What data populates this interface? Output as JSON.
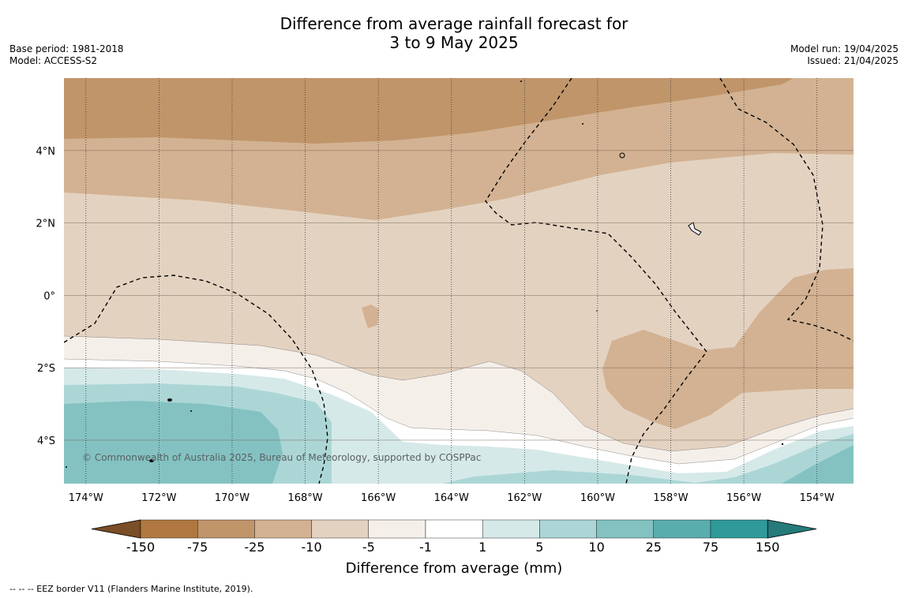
{
  "header": {
    "title_line1": "Difference from average rainfall forecast for",
    "title_line2": "3 to 9 May 2025",
    "base_period": "Base period: 1981-2018",
    "model": "Model: ACCESS-S2",
    "model_run": "Model run: 19/04/2025",
    "issued": "Issued: 21/04/2025"
  },
  "map": {
    "copyright": "© Commonwealth of Australia 2025, Bureau of Meteorology, supported by COSPPac",
    "lat_labels": [
      "4°N",
      "2°N",
      "0°",
      "2°S",
      "4°S"
    ],
    "lon_labels": [
      "174°W",
      "172°W",
      "170°W",
      "168°W",
      "166°W",
      "164°W",
      "162°W",
      "160°W",
      "158°W",
      "156°W",
      "154°W"
    ],
    "lat_range": [
      -5.2,
      6.0
    ],
    "lon_range": [
      -174.6,
      -153.0
    ],
    "lat_ticks": [
      4,
      2,
      0,
      -2,
      -4
    ],
    "lon_ticks": [
      -174,
      -172,
      -170,
      -168,
      -166,
      -164,
      -162,
      -160,
      -158,
      -156,
      -154
    ]
  },
  "colorbar": {
    "title": "Difference from average (mm)",
    "tick_labels": [
      "-150",
      "-75",
      "-25",
      "-10",
      "-5",
      "-1",
      "1",
      "5",
      "10",
      "25",
      "75",
      "150"
    ],
    "colors": [
      "#7a4e26",
      "#b07840",
      "#c0956a",
      "#d2b292",
      "#e4d2c1",
      "#f5efea",
      "#ffffff",
      "#d6e9e9",
      "#acd6d6",
      "#84c2c2",
      "#5aadad",
      "#309a9a",
      "#257a7a"
    ]
  },
  "footnote": "-- -- -- EEZ border V11 (Flanders Marine Institute, 2019)."
}
